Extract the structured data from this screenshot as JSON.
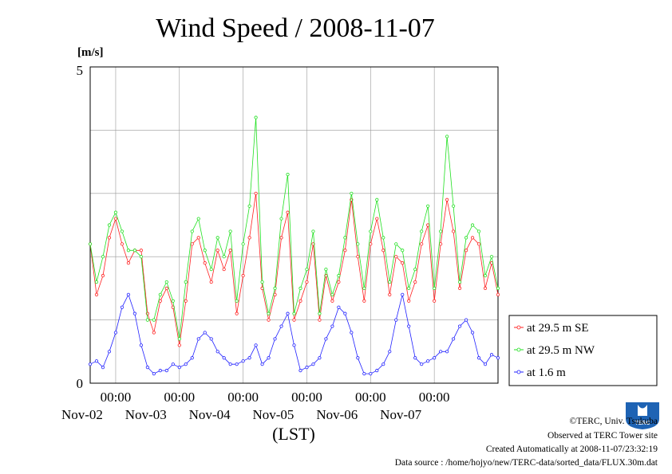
{
  "chart_data": {
    "type": "line",
    "title": "Wind Speed / 2008-11-07",
    "yunit": "[m/s]",
    "xlabel": "(LST)",
    "ylim": [
      0,
      5
    ],
    "ytick_labels": [
      "0",
      "5"
    ],
    "x_unit": "days since Nov-01 00:00 LST",
    "xlim": [
      0.6,
      7.0
    ],
    "x_tick_time_label": "00:00",
    "x_tick_dates": [
      "Nov-02",
      "Nov-03",
      "Nov-04",
      "Nov-05",
      "Nov-06",
      "Nov-07"
    ],
    "grid": true,
    "legend_position": "right",
    "series": [
      {
        "name": "at 29.5 m SE",
        "color": "#ff2020",
        "points": [
          [
            0.6,
            2.2
          ],
          [
            0.7,
            1.4
          ],
          [
            0.8,
            1.7
          ],
          [
            0.9,
            2.3
          ],
          [
            1.0,
            2.6
          ],
          [
            1.1,
            2.2
          ],
          [
            1.2,
            1.9
          ],
          [
            1.3,
            2.1
          ],
          [
            1.4,
            2.1
          ],
          [
            1.5,
            1.1
          ],
          [
            1.6,
            0.8
          ],
          [
            1.7,
            1.3
          ],
          [
            1.8,
            1.5
          ],
          [
            1.9,
            1.2
          ],
          [
            2.0,
            0.6
          ],
          [
            2.1,
            1.3
          ],
          [
            2.2,
            2.2
          ],
          [
            2.3,
            2.3
          ],
          [
            2.4,
            1.9
          ],
          [
            2.5,
            1.6
          ],
          [
            2.6,
            2.1
          ],
          [
            2.7,
            1.8
          ],
          [
            2.8,
            2.1
          ],
          [
            2.9,
            1.1
          ],
          [
            3.0,
            1.7
          ],
          [
            3.1,
            2.3
          ],
          [
            3.2,
            3.0
          ],
          [
            3.3,
            1.5
          ],
          [
            3.4,
            1.0
          ],
          [
            3.5,
            1.4
          ],
          [
            3.6,
            2.3
          ],
          [
            3.7,
            2.7
          ],
          [
            3.8,
            1.0
          ],
          [
            3.9,
            1.3
          ],
          [
            4.0,
            1.6
          ],
          [
            4.1,
            2.2
          ],
          [
            4.2,
            1.0
          ],
          [
            4.3,
            1.7
          ],
          [
            4.4,
            1.3
          ],
          [
            4.5,
            1.6
          ],
          [
            4.6,
            2.1
          ],
          [
            4.7,
            2.9
          ],
          [
            4.8,
            2.0
          ],
          [
            4.9,
            1.3
          ],
          [
            5.0,
            2.2
          ],
          [
            5.1,
            2.6
          ],
          [
            5.2,
            2.1
          ],
          [
            5.3,
            1.4
          ],
          [
            5.4,
            2.0
          ],
          [
            5.5,
            1.9
          ],
          [
            5.6,
            1.3
          ],
          [
            5.7,
            1.6
          ],
          [
            5.8,
            2.2
          ],
          [
            5.9,
            2.5
          ],
          [
            6.0,
            1.3
          ],
          [
            6.1,
            2.2
          ],
          [
            6.2,
            2.9
          ],
          [
            6.3,
            2.4
          ],
          [
            6.4,
            1.5
          ],
          [
            6.5,
            2.1
          ],
          [
            6.6,
            2.3
          ],
          [
            6.7,
            2.2
          ],
          [
            6.8,
            1.5
          ],
          [
            6.9,
            1.9
          ],
          [
            7.0,
            1.4
          ]
        ]
      },
      {
        "name": "at 29.5 m NW",
        "color": "#20e020",
        "points": [
          [
            0.6,
            2.2
          ],
          [
            0.7,
            1.6
          ],
          [
            0.8,
            2.0
          ],
          [
            0.9,
            2.5
          ],
          [
            1.0,
            2.7
          ],
          [
            1.1,
            2.4
          ],
          [
            1.2,
            2.1
          ],
          [
            1.3,
            2.1
          ],
          [
            1.4,
            2.0
          ],
          [
            1.5,
            1.0
          ],
          [
            1.6,
            1.0
          ],
          [
            1.7,
            1.4
          ],
          [
            1.8,
            1.6
          ],
          [
            1.9,
            1.3
          ],
          [
            2.0,
            0.7
          ],
          [
            2.1,
            1.6
          ],
          [
            2.2,
            2.4
          ],
          [
            2.3,
            2.6
          ],
          [
            2.4,
            2.1
          ],
          [
            2.5,
            1.8
          ],
          [
            2.6,
            2.3
          ],
          [
            2.7,
            2.0
          ],
          [
            2.8,
            2.4
          ],
          [
            2.9,
            1.3
          ],
          [
            3.0,
            2.2
          ],
          [
            3.1,
            2.8
          ],
          [
            3.2,
            4.2
          ],
          [
            3.3,
            1.6
          ],
          [
            3.4,
            1.1
          ],
          [
            3.5,
            1.5
          ],
          [
            3.6,
            2.6
          ],
          [
            3.7,
            3.3
          ],
          [
            3.8,
            1.1
          ],
          [
            3.9,
            1.5
          ],
          [
            4.0,
            1.8
          ],
          [
            4.1,
            2.4
          ],
          [
            4.2,
            1.1
          ],
          [
            4.3,
            1.8
          ],
          [
            4.4,
            1.4
          ],
          [
            4.5,
            1.7
          ],
          [
            4.6,
            2.3
          ],
          [
            4.7,
            3.0
          ],
          [
            4.8,
            2.2
          ],
          [
            4.9,
            1.5
          ],
          [
            5.0,
            2.4
          ],
          [
            5.1,
            2.9
          ],
          [
            5.2,
            2.3
          ],
          [
            5.3,
            1.6
          ],
          [
            5.4,
            2.2
          ],
          [
            5.5,
            2.1
          ],
          [
            5.6,
            1.5
          ],
          [
            5.7,
            1.8
          ],
          [
            5.8,
            2.4
          ],
          [
            5.9,
            2.8
          ],
          [
            6.0,
            1.5
          ],
          [
            6.1,
            2.4
          ],
          [
            6.2,
            3.9
          ],
          [
            6.3,
            2.8
          ],
          [
            6.4,
            1.6
          ],
          [
            6.5,
            2.3
          ],
          [
            6.6,
            2.5
          ],
          [
            6.7,
            2.4
          ],
          [
            6.8,
            1.7
          ],
          [
            6.9,
            2.0
          ],
          [
            7.0,
            1.5
          ]
        ]
      },
      {
        "name": "at 1.6 m",
        "color": "#2020ff",
        "points": [
          [
            0.6,
            0.3
          ],
          [
            0.7,
            0.35
          ],
          [
            0.8,
            0.25
          ],
          [
            0.9,
            0.5
          ],
          [
            1.0,
            0.8
          ],
          [
            1.1,
            1.2
          ],
          [
            1.2,
            1.4
          ],
          [
            1.3,
            1.1
          ],
          [
            1.4,
            0.6
          ],
          [
            1.5,
            0.25
          ],
          [
            1.6,
            0.15
          ],
          [
            1.7,
            0.2
          ],
          [
            1.8,
            0.2
          ],
          [
            1.9,
            0.3
          ],
          [
            2.0,
            0.25
          ],
          [
            2.1,
            0.3
          ],
          [
            2.2,
            0.4
          ],
          [
            2.3,
            0.7
          ],
          [
            2.4,
            0.8
          ],
          [
            2.5,
            0.7
          ],
          [
            2.6,
            0.5
          ],
          [
            2.7,
            0.4
          ],
          [
            2.8,
            0.3
          ],
          [
            2.9,
            0.3
          ],
          [
            3.0,
            0.35
          ],
          [
            3.1,
            0.4
          ],
          [
            3.2,
            0.6
          ],
          [
            3.3,
            0.3
          ],
          [
            3.4,
            0.4
          ],
          [
            3.5,
            0.7
          ],
          [
            3.6,
            0.9
          ],
          [
            3.7,
            1.1
          ],
          [
            3.8,
            0.6
          ],
          [
            3.9,
            0.2
          ],
          [
            4.0,
            0.25
          ],
          [
            4.1,
            0.3
          ],
          [
            4.2,
            0.4
          ],
          [
            4.3,
            0.7
          ],
          [
            4.4,
            0.9
          ],
          [
            4.5,
            1.2
          ],
          [
            4.6,
            1.1
          ],
          [
            4.7,
            0.8
          ],
          [
            4.8,
            0.4
          ],
          [
            4.9,
            0.15
          ],
          [
            5.0,
            0.15
          ],
          [
            5.1,
            0.2
          ],
          [
            5.2,
            0.3
          ],
          [
            5.3,
            0.5
          ],
          [
            5.4,
            1.0
          ],
          [
            5.5,
            1.4
          ],
          [
            5.6,
            0.9
          ],
          [
            5.7,
            0.4
          ],
          [
            5.8,
            0.3
          ],
          [
            5.9,
            0.35
          ],
          [
            6.0,
            0.4
          ],
          [
            6.1,
            0.5
          ],
          [
            6.2,
            0.5
          ],
          [
            6.3,
            0.7
          ],
          [
            6.4,
            0.9
          ],
          [
            6.5,
            1.0
          ],
          [
            6.6,
            0.8
          ],
          [
            6.7,
            0.4
          ],
          [
            6.8,
            0.3
          ],
          [
            6.9,
            0.45
          ],
          [
            7.0,
            0.4
          ]
        ]
      }
    ]
  },
  "credits": [
    "©TERC, Univ. Tsukuba",
    "Observed at TERC Tower site",
    "Created Automatically at 2008-11-07/23:32:19",
    "Data source : /home/hojyo/new/TERC-data/sorted_data/FLUX.30m.dat"
  ],
  "logo_text": "TERC"
}
